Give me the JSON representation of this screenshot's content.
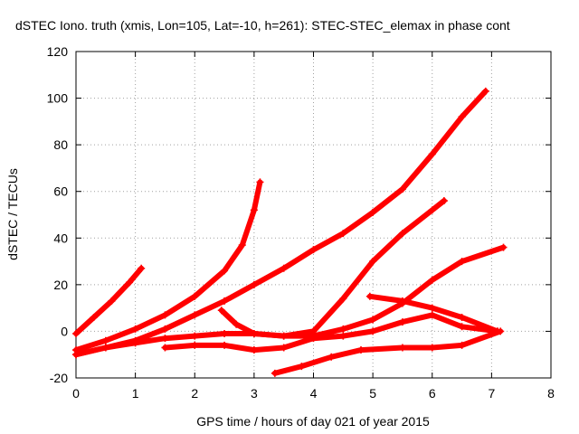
{
  "chart_data": {
    "type": "scatter",
    "title": "dSTEC Iono. truth (xmis, Lon=105, Lat=-10, h=261): STEC-STEC_elemax in phase cont",
    "xlabel": "GPS time / hours of day 021 of year 2015",
    "ylabel": "dSTEC  / TECUs",
    "xlim": [
      0,
      8
    ],
    "ylim": [
      -20,
      120
    ],
    "xticks": [
      0,
      1,
      2,
      3,
      4,
      5,
      6,
      7,
      8
    ],
    "yticks": [
      -20,
      0,
      20,
      40,
      60,
      80,
      100,
      120
    ],
    "grid": true,
    "marker": "plus",
    "color": "#ff0000",
    "series": [
      {
        "x": [
          0.0,
          0.3,
          0.6,
          0.9,
          1.1
        ],
        "y": [
          -1,
          6,
          13,
          21,
          27
        ]
      },
      {
        "x": [
          0.0,
          0.5,
          1.0,
          1.5,
          2.0,
          2.5,
          2.8,
          3.0,
          3.1
        ],
        "y": [
          -8,
          -4,
          1,
          7,
          15,
          26,
          37,
          52,
          64
        ]
      },
      {
        "x": [
          0.0,
          0.5,
          1.0,
          1.5,
          2.0,
          2.5,
          3.0,
          3.5,
          4.0,
          4.5,
          5.0,
          5.5,
          6.0,
          6.5,
          6.9
        ],
        "y": [
          -10,
          -7,
          -4,
          1,
          7,
          13,
          20,
          27,
          35,
          42,
          51,
          61,
          76,
          92,
          103
        ]
      },
      {
        "x": [
          0.0,
          0.5,
          1.0,
          1.5,
          2.0,
          2.5,
          3.0,
          3.5,
          4.0,
          4.5,
          5.0,
          5.5,
          6.0,
          6.5,
          7.2
        ],
        "y": [
          -10,
          -7,
          -5,
          -3,
          -2,
          -1,
          -1,
          -2,
          -2,
          1,
          5,
          12,
          22,
          30,
          36
        ]
      },
      {
        "x": [
          2.45,
          2.7,
          3.0,
          3.5,
          4.0,
          4.5,
          5.0,
          5.5,
          6.0,
          6.2
        ],
        "y": [
          9,
          3,
          -1,
          -2,
          0,
          14,
          30,
          42,
          52,
          56
        ]
      },
      {
        "x": [
          1.5,
          2.0,
          2.5,
          3.0,
          3.5,
          4.0,
          4.5,
          5.0,
          5.5,
          6.0,
          6.5,
          7.1
        ],
        "y": [
          -7,
          -6,
          -6,
          -8,
          -7,
          -3,
          -2,
          0,
          4,
          7,
          2,
          0
        ]
      },
      {
        "x": [
          4.95,
          5.5,
          6.0,
          6.5,
          7.1
        ],
        "y": [
          15,
          13,
          10,
          6,
          0
        ]
      },
      {
        "x": [
          3.35,
          3.8,
          4.3,
          4.8,
          5.5,
          6.0,
          6.5,
          7.15
        ],
        "y": [
          -18,
          -15,
          -11,
          -8,
          -7,
          -7,
          -6,
          0
        ]
      }
    ]
  }
}
